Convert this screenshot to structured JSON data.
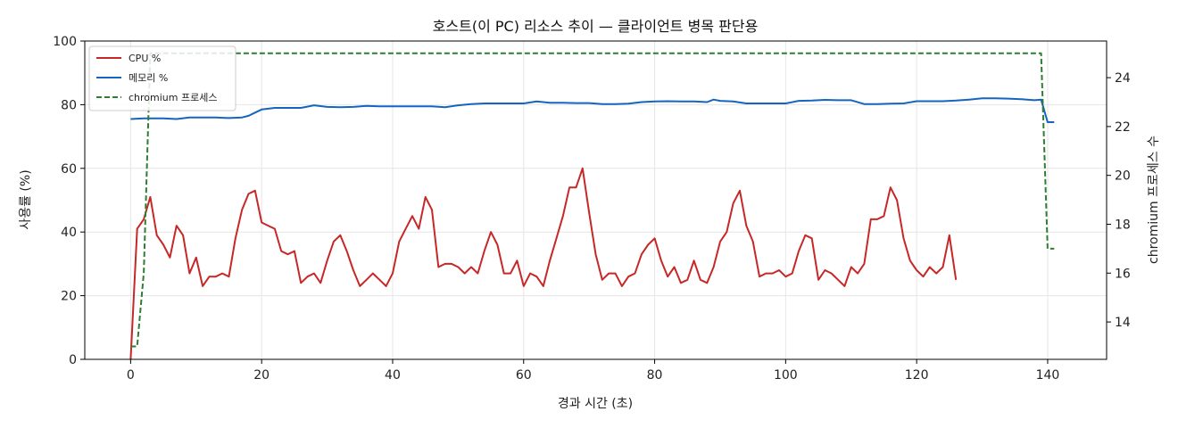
{
  "chart_data": {
    "type": "line",
    "title": "호스트(이 PC) 리소스 추이 — 클라이언트 병목 판단용",
    "xlabel": "경과 시간 (초)",
    "ylabel": "사용률 (%)",
    "y2label": "chromium 프로세스 수",
    "xlim": [
      -7,
      149
    ],
    "ylim": [
      0,
      100
    ],
    "y2lim": [
      12.47,
      25.5
    ],
    "xticks": [
      0,
      20,
      40,
      60,
      80,
      100,
      120,
      140
    ],
    "yticks": [
      0,
      20,
      40,
      60,
      80,
      100
    ],
    "y2ticks": [
      14,
      16,
      18,
      20,
      22,
      24
    ],
    "grid": true,
    "legend_position": "top-left",
    "series": [
      {
        "name": "CPU %",
        "axis": "left",
        "color": "#c62828",
        "style": "solid",
        "points": [
          [
            0,
            0
          ],
          [
            1,
            41
          ],
          [
            2,
            44
          ],
          [
            3,
            51
          ],
          [
            4,
            39
          ],
          [
            5,
            36
          ],
          [
            6,
            32
          ],
          [
            7,
            42
          ],
          [
            8,
            39
          ],
          [
            9,
            27
          ],
          [
            10,
            32
          ],
          [
            11,
            23
          ],
          [
            12,
            26
          ],
          [
            13,
            26
          ],
          [
            14,
            27
          ],
          [
            15,
            26
          ],
          [
            16,
            38
          ],
          [
            17,
            47
          ],
          [
            18,
            52
          ],
          [
            19,
            53
          ],
          [
            20,
            43
          ],
          [
            21,
            42
          ],
          [
            22,
            41
          ],
          [
            23,
            34
          ],
          [
            24,
            33
          ],
          [
            25,
            34
          ],
          [
            26,
            24
          ],
          [
            27,
            26
          ],
          [
            28,
            27
          ],
          [
            29,
            24
          ],
          [
            30,
            31
          ],
          [
            31,
            37
          ],
          [
            32,
            39
          ],
          [
            33,
            34
          ],
          [
            34,
            28
          ],
          [
            35,
            23
          ],
          [
            36,
            25
          ],
          [
            37,
            27
          ],
          [
            38,
            25
          ],
          [
            39,
            23
          ],
          [
            40,
            27
          ],
          [
            41,
            37
          ],
          [
            42,
            41
          ],
          [
            43,
            45
          ],
          [
            44,
            41
          ],
          [
            45,
            51
          ],
          [
            46,
            47
          ],
          [
            47,
            29
          ],
          [
            48,
            30
          ],
          [
            49,
            30
          ],
          [
            50,
            29
          ],
          [
            51,
            27
          ],
          [
            52,
            29
          ],
          [
            53,
            27
          ],
          [
            54,
            34
          ],
          [
            55,
            40
          ],
          [
            56,
            36
          ],
          [
            57,
            27
          ],
          [
            58,
            27
          ],
          [
            59,
            31
          ],
          [
            60,
            23
          ],
          [
            61,
            27
          ],
          [
            62,
            26
          ],
          [
            63,
            23
          ],
          [
            64,
            31
          ],
          [
            65,
            38
          ],
          [
            66,
            45
          ],
          [
            67,
            54
          ],
          [
            68,
            54
          ],
          [
            69,
            60
          ],
          [
            70,
            46
          ],
          [
            71,
            33
          ],
          [
            72,
            25
          ],
          [
            73,
            27
          ],
          [
            74,
            27
          ],
          [
            75,
            23
          ],
          [
            76,
            26
          ],
          [
            77,
            27
          ],
          [
            78,
            33
          ],
          [
            79,
            36
          ],
          [
            80,
            38
          ],
          [
            81,
            31
          ],
          [
            82,
            26
          ],
          [
            83,
            29
          ],
          [
            84,
            24
          ],
          [
            85,
            25
          ],
          [
            86,
            31
          ],
          [
            87,
            25
          ],
          [
            88,
            24
          ],
          [
            89,
            29
          ],
          [
            90,
            37
          ],
          [
            91,
            40
          ],
          [
            92,
            49
          ],
          [
            93,
            53
          ],
          [
            94,
            42
          ],
          [
            95,
            37
          ],
          [
            96,
            26
          ],
          [
            97,
            27
          ],
          [
            98,
            27
          ],
          [
            99,
            28
          ],
          [
            100,
            26
          ],
          [
            101,
            27
          ],
          [
            102,
            34
          ],
          [
            103,
            39
          ],
          [
            104,
            38
          ],
          [
            105,
            25
          ],
          [
            106,
            28
          ],
          [
            107,
            27
          ],
          [
            108,
            25
          ],
          [
            109,
            23
          ],
          [
            110,
            29
          ],
          [
            111,
            27
          ],
          [
            112,
            30
          ],
          [
            113,
            44
          ],
          [
            114,
            44
          ],
          [
            115,
            45
          ],
          [
            116,
            54
          ],
          [
            117,
            50
          ],
          [
            118,
            38
          ],
          [
            119,
            31
          ],
          [
            120,
            28
          ],
          [
            121,
            26
          ],
          [
            122,
            29
          ],
          [
            123,
            27
          ],
          [
            124,
            29
          ],
          [
            125,
            39
          ],
          [
            126,
            25
          ]
        ]
      },
      {
        "name": "메모리 %",
        "axis": "left",
        "color": "#1565c0",
        "style": "solid",
        "points": [
          [
            0,
            75.5
          ],
          [
            2,
            75.7
          ],
          [
            5,
            75.7
          ],
          [
            7,
            75.5
          ],
          [
            9,
            76
          ],
          [
            11,
            76
          ],
          [
            13,
            76
          ],
          [
            15,
            75.8
          ],
          [
            17,
            76
          ],
          [
            18,
            76.5
          ],
          [
            19,
            77.5
          ],
          [
            20,
            78.5
          ],
          [
            22,
            79
          ],
          [
            24,
            79
          ],
          [
            26,
            79
          ],
          [
            28,
            79.8
          ],
          [
            30,
            79.3
          ],
          [
            32,
            79.2
          ],
          [
            34,
            79.3
          ],
          [
            36,
            79.6
          ],
          [
            38,
            79.5
          ],
          [
            40,
            79.5
          ],
          [
            42,
            79.5
          ],
          [
            44,
            79.5
          ],
          [
            46,
            79.5
          ],
          [
            48,
            79.2
          ],
          [
            50,
            79.8
          ],
          [
            52,
            80.2
          ],
          [
            54,
            80.4
          ],
          [
            56,
            80.4
          ],
          [
            58,
            80.4
          ],
          [
            60,
            80.4
          ],
          [
            62,
            81
          ],
          [
            64,
            80.6
          ],
          [
            66,
            80.6
          ],
          [
            68,
            80.5
          ],
          [
            70,
            80.5
          ],
          [
            72,
            80.2
          ],
          [
            74,
            80.2
          ],
          [
            76,
            80.3
          ],
          [
            78,
            80.8
          ],
          [
            80,
            81
          ],
          [
            82,
            81.1
          ],
          [
            84,
            81
          ],
          [
            86,
            81
          ],
          [
            88,
            80.8
          ],
          [
            89,
            81.6
          ],
          [
            90,
            81.2
          ],
          [
            92,
            81
          ],
          [
            94,
            80.4
          ],
          [
            96,
            80.4
          ],
          [
            98,
            80.4
          ],
          [
            100,
            80.4
          ],
          [
            102,
            81.2
          ],
          [
            104,
            81.3
          ],
          [
            106,
            81.5
          ],
          [
            108,
            81.4
          ],
          [
            110,
            81.4
          ],
          [
            112,
            80.2
          ],
          [
            114,
            80.2
          ],
          [
            116,
            80.3
          ],
          [
            118,
            80.4
          ],
          [
            120,
            81.1
          ],
          [
            122,
            81.1
          ],
          [
            124,
            81.1
          ],
          [
            126,
            81.3
          ],
          [
            128,
            81.6
          ],
          [
            130,
            82
          ],
          [
            132,
            82
          ],
          [
            134,
            81.9
          ],
          [
            136,
            81.7
          ],
          [
            138,
            81.4
          ],
          [
            139,
            81.6
          ],
          [
            140,
            74.5
          ],
          [
            141,
            74.5
          ]
        ]
      },
      {
        "name": "chromium 프로세스",
        "axis": "right",
        "color": "#2e7d32",
        "style": "dashed",
        "points": [
          [
            0,
            13
          ],
          [
            1,
            13
          ],
          [
            2,
            16
          ],
          [
            3,
            25
          ],
          [
            4,
            25
          ],
          [
            50,
            25
          ],
          [
            100,
            25
          ],
          [
            138,
            25
          ],
          [
            139,
            25
          ],
          [
            140,
            17
          ],
          [
            141,
            17
          ]
        ]
      }
    ]
  }
}
